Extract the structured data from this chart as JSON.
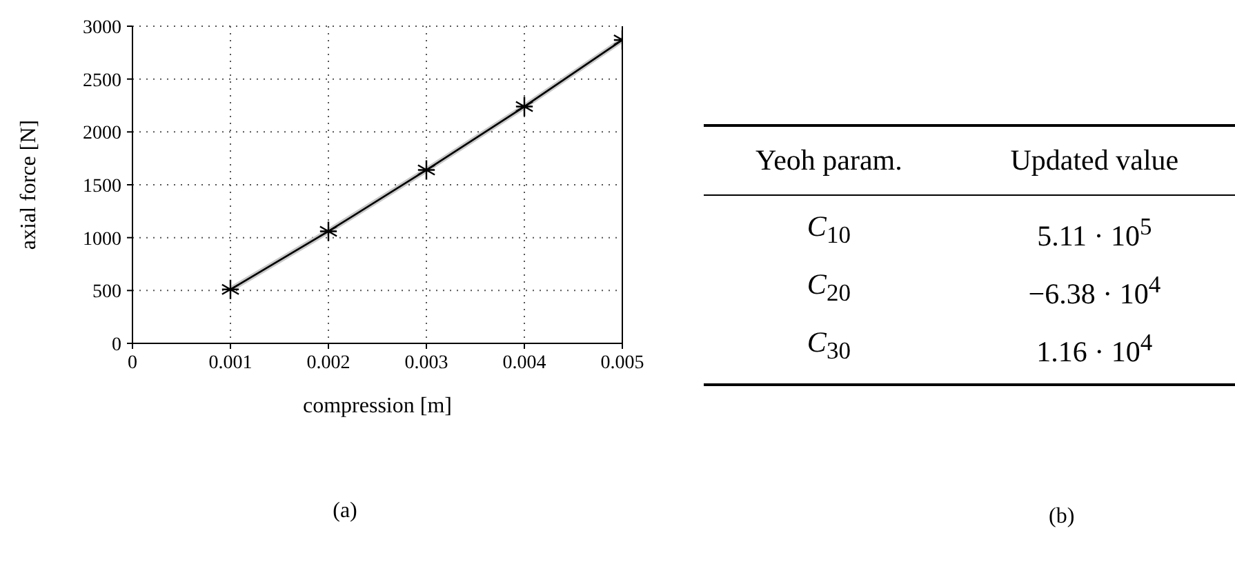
{
  "chart_data": [
    {
      "type": "line",
      "xlabel": "compression [m]",
      "ylabel": "axial force [N]",
      "x": [
        0.001,
        0.002,
        0.003,
        0.004,
        0.005
      ],
      "series": [
        {
          "color": "#000000",
          "values": [
            510,
            1060,
            1640,
            2240,
            2870
          ],
          "lower": [
            480,
            1030,
            1610,
            2210,
            2840
          ],
          "upper": [
            540,
            1090,
            1670,
            2270,
            2900
          ]
        }
      ],
      "xlim": [
        0,
        0.005
      ],
      "xticks": [
        0,
        0.001,
        0.002,
        0.003,
        0.004,
        0.005
      ],
      "ylim": [
        0,
        3000
      ],
      "yticks": [
        0,
        500,
        1000,
        1500,
        2000,
        2500,
        3000
      ],
      "grid": true,
      "marker": "cross",
      "line_style": "solid",
      "annotations": [
        "(a)"
      ]
    },
    {
      "type": "other",
      "annotations": [
        "Yeoh param.",
        "Updated value",
        "C$_{10}$",
        "5.11 · 10$^{5}$",
        "C$_{20}$",
        "−6.38 · 10$^{4}$",
        "C$_{30}$",
        "1.16 · 10$^{4}$",
        "(b)"
      ]
    }
  ]
}
